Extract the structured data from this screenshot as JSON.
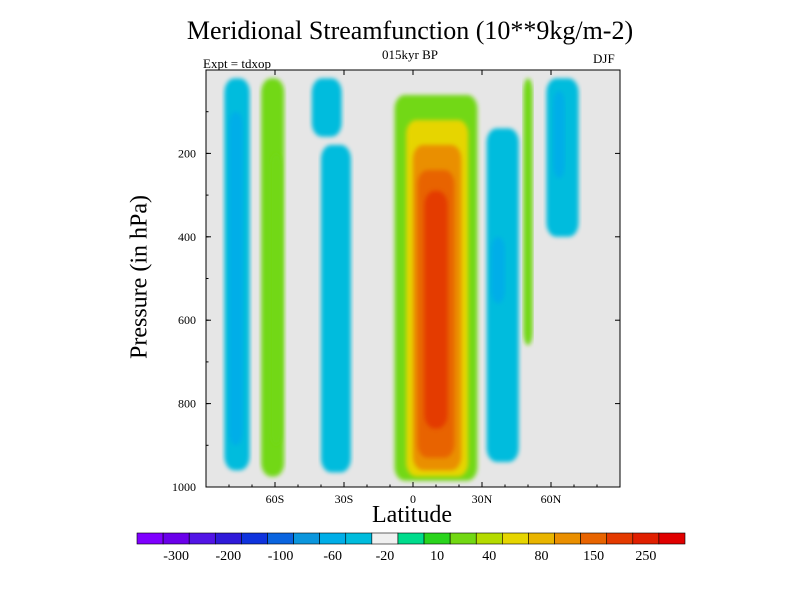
{
  "chart_data": {
    "type": "heatmap",
    "title": "Meridional Streamfunction (10**9kg/m-2)",
    "subtitle": "015kyr BP",
    "left_annotation": "Expt = tdxop",
    "right_annotation": "DJF",
    "xlabel": "Latitude",
    "ylabel": "Pressure (in hPa)",
    "xlim": [
      -90,
      90
    ],
    "ylim": [
      0,
      1000
    ],
    "y_inverted": true,
    "x_ticks": [
      {
        "value": -60,
        "label": "60S"
      },
      {
        "value": -30,
        "label": "30S"
      },
      {
        "value": 0,
        "label": "0"
      },
      {
        "value": 30,
        "label": "30N"
      },
      {
        "value": 60,
        "label": "60N"
      }
    ],
    "y_ticks": [
      {
        "value": 200,
        "label": "200"
      },
      {
        "value": 400,
        "label": "400"
      },
      {
        "value": 600,
        "label": "600"
      },
      {
        "value": 800,
        "label": "800"
      },
      {
        "value": 1000,
        "label": "1000"
      }
    ],
    "background_color": "#e6e6e6",
    "colorbar": {
      "colors": [
        "#7f00ff",
        "#6a00ea",
        "#5214e6",
        "#2f1ad9",
        "#0f33dd",
        "#0a64df",
        "#0b96dd",
        "#00aee8",
        "#00bcdd",
        "#f0f0f0",
        "#00dc8c",
        "#2ad41d",
        "#72d813",
        "#b5db00",
        "#e6d500",
        "#e9b500",
        "#ea8f00",
        "#e86400",
        "#e43a00",
        "#e01f00",
        "#e00000"
      ],
      "labels": [
        "-300",
        "-200",
        "-100",
        "-60",
        "-20",
        "10",
        "40",
        "80",
        "150",
        "250"
      ],
      "label_positions": [
        1,
        3,
        5,
        7,
        9,
        11,
        13,
        15,
        17,
        19
      ]
    },
    "cells": [
      {
        "lat": [
          -82,
          -71
        ],
        "p": [
          20,
          960
        ],
        "level": -40
      },
      {
        "lat": [
          -80,
          -74
        ],
        "p": [
          100,
          900
        ],
        "level": -60
      },
      {
        "lat": [
          -66,
          -56
        ],
        "p": [
          20,
          975
        ],
        "level": 20
      },
      {
        "lat": [
          -62,
          -57
        ],
        "p": [
          200,
          900
        ],
        "level": 30
      },
      {
        "lat": [
          -44,
          -31
        ],
        "p": [
          20,
          160
        ],
        "level": -40
      },
      {
        "lat": [
          -40,
          -27
        ],
        "p": [
          180,
          965
        ],
        "level": -40
      },
      {
        "lat": [
          -8,
          28
        ],
        "p": [
          60,
          985
        ],
        "level": 20
      },
      {
        "lat": [
          -3,
          24
        ],
        "p": [
          120,
          975
        ],
        "level": 60
      },
      {
        "lat": [
          0,
          21
        ],
        "p": [
          180,
          960
        ],
        "level": 100
      },
      {
        "lat": [
          2,
          18
        ],
        "p": [
          240,
          930
        ],
        "level": 150
      },
      {
        "lat": [
          5,
          15
        ],
        "p": [
          290,
          860
        ],
        "level": 220
      },
      {
        "lat": [
          32,
          46
        ],
        "p": [
          140,
          940
        ],
        "level": -40
      },
      {
        "lat": [
          34,
          40
        ],
        "p": [
          400,
          560
        ],
        "level": -60
      },
      {
        "lat": [
          48,
          52
        ],
        "p": [
          20,
          660
        ],
        "level": 20
      },
      {
        "lat": [
          58,
          72
        ],
        "p": [
          20,
          400
        ],
        "level": -40
      },
      {
        "lat": [
          61,
          66
        ],
        "p": [
          50,
          260
        ],
        "level": -60
      }
    ]
  }
}
